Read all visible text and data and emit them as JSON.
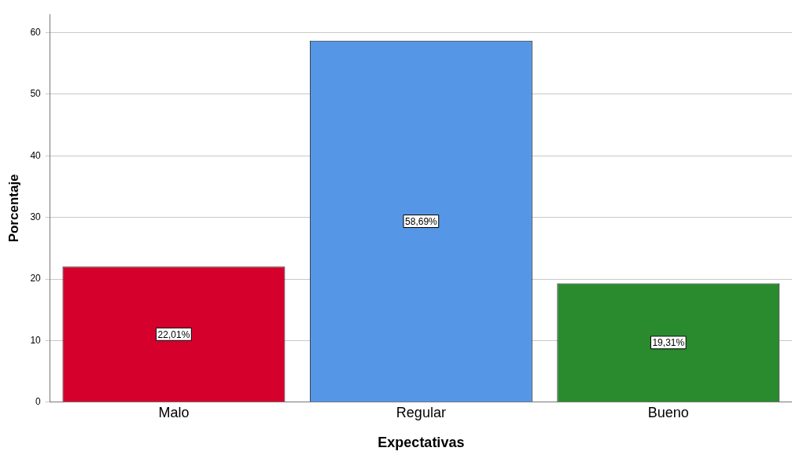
{
  "chart_data": {
    "type": "bar",
    "xlabel": "Expectativas",
    "ylabel": "Porcentaje",
    "categories": [
      "Malo",
      "Regular",
      "Bueno"
    ],
    "values": [
      22.01,
      58.69,
      19.31
    ],
    "colors": [
      "#d5002c",
      "#5596e6",
      "#2a8a2e"
    ],
    "value_labels": [
      "22,01%",
      "58,69%",
      "19,31%"
    ],
    "ylim": [
      0,
      63
    ],
    "yticks": [
      0,
      10,
      20,
      30,
      40,
      50,
      60
    ],
    "grid": "y",
    "legend": false
  }
}
